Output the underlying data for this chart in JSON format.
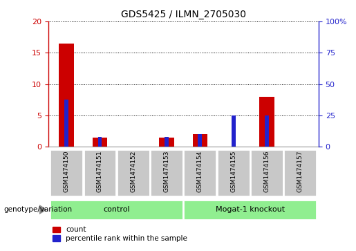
{
  "title": "GDS5425 / ILMN_2705030",
  "samples": [
    "GSM1474150",
    "GSM1474151",
    "GSM1474152",
    "GSM1474153",
    "GSM1474154",
    "GSM1474155",
    "GSM1474156",
    "GSM1474157"
  ],
  "count": [
    16.5,
    1.5,
    0,
    1.5,
    2.0,
    0,
    8.0,
    0
  ],
  "percentile": [
    37.5,
    8,
    0,
    8,
    10,
    25,
    25,
    0
  ],
  "groups": [
    {
      "label": "control",
      "start": 0,
      "end": 3,
      "color": "#90EE90"
    },
    {
      "label": "Mogat-1 knockout",
      "start": 4,
      "end": 7,
      "color": "#90EE90"
    }
  ],
  "left_ylim": [
    0,
    20
  ],
  "right_ylim": [
    0,
    100
  ],
  "left_yticks": [
    0,
    5,
    10,
    15,
    20
  ],
  "right_yticks": [
    0,
    25,
    50,
    75,
    100
  ],
  "right_yticklabels": [
    "0",
    "25",
    "50",
    "75",
    "100%"
  ],
  "red_color": "#CC0000",
  "blue_color": "#2222CC",
  "sample_box_color": "#C8C8C8",
  "label_fontsize": 8,
  "title_fontsize": 10,
  "group_label_fontsize": 8,
  "legend_fontsize": 7.5,
  "geno_label": "genotype/variation",
  "geno_fontsize": 7.5,
  "legend_items": [
    "count",
    "percentile rank within the sample"
  ]
}
